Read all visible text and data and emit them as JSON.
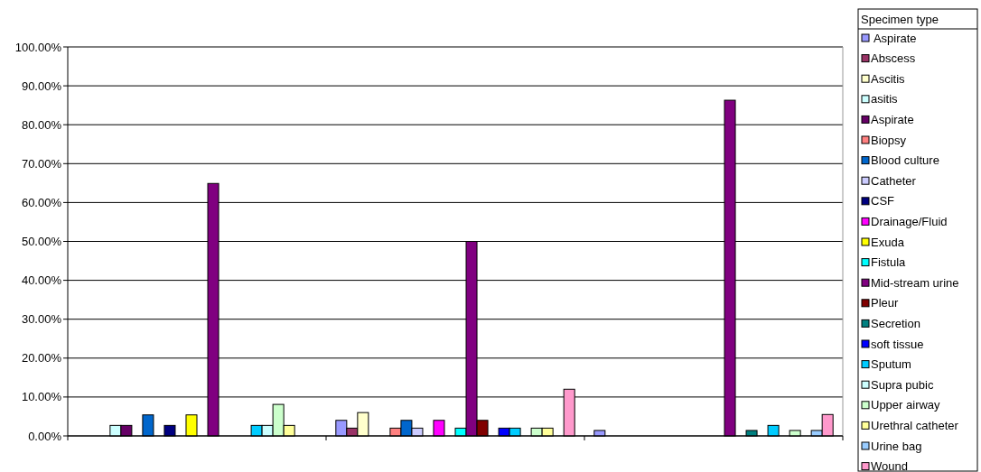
{
  "chart_data": {
    "type": "bar",
    "categories": [
      null,
      null,
      null
    ],
    "legend_title": "Specimen type",
    "legend": "right",
    "grid": "y",
    "ylim": [
      0,
      100
    ],
    "yticks": [
      {
        "value": 0,
        "label": "0.00%"
      },
      {
        "value": 10,
        "label": "10.00%"
      },
      {
        "value": 20,
        "label": "20.00%"
      },
      {
        "value": 30,
        "label": "30.00%"
      },
      {
        "value": 40,
        "label": "40.00%"
      },
      {
        "value": 50,
        "label": "50.00%"
      },
      {
        "value": 60,
        "label": "60.00%"
      },
      {
        "value": 70,
        "label": "70.00%"
      },
      {
        "value": 80,
        "label": "80.00%"
      },
      {
        "value": 90,
        "label": "90.00%"
      },
      {
        "value": 100,
        "label": "100.00%"
      }
    ],
    "series": [
      {
        "name": " Aspirate",
        "color": "#9999ff",
        "values": [
          null,
          4,
          1.4
        ]
      },
      {
        "name": "Abscess",
        "color": "#993366",
        "values": [
          null,
          2,
          null
        ]
      },
      {
        "name": "Ascitis",
        "color": "#ffffcc",
        "values": [
          null,
          6,
          null
        ]
      },
      {
        "name": "asitis",
        "color": "#ccffff",
        "values": [
          2.7,
          null,
          null
        ]
      },
      {
        "name": "Aspirate",
        "color": "#660066",
        "values": [
          2.7,
          null,
          null
        ]
      },
      {
        "name": "Biopsy",
        "color": "#ff8080",
        "values": [
          null,
          2,
          null
        ]
      },
      {
        "name": "Blood culture",
        "color": "#0066cc",
        "values": [
          5.4,
          4,
          null
        ]
      },
      {
        "name": "Catheter",
        "color": "#ccccff",
        "values": [
          null,
          2,
          null
        ]
      },
      {
        "name": "CSF",
        "color": "#000080",
        "values": [
          2.7,
          null,
          null
        ]
      },
      {
        "name": "Drainage/Fluid",
        "color": "#ff00ff",
        "values": [
          null,
          4,
          null
        ]
      },
      {
        "name": "Exuda",
        "color": "#ffff00",
        "values": [
          5.4,
          null,
          null
        ]
      },
      {
        "name": "Fistula",
        "color": "#00ffff",
        "values": [
          null,
          2,
          null
        ]
      },
      {
        "name": "Mid-stream urine",
        "color": "#800080",
        "values": [
          64.9,
          50,
          86.3
        ]
      },
      {
        "name": "Pleur",
        "color": "#800000",
        "values": [
          null,
          4,
          null
        ]
      },
      {
        "name": "Secretion",
        "color": "#008080",
        "values": [
          null,
          null,
          1.4
        ]
      },
      {
        "name": "soft tissue",
        "color": "#0000ff",
        "values": [
          null,
          2,
          null
        ]
      },
      {
        "name": "Sputum",
        "color": "#00ccff",
        "values": [
          2.7,
          2,
          2.7
        ]
      },
      {
        "name": "Supra pubic",
        "color": "#ccffff",
        "values": [
          2.7,
          null,
          null
        ]
      },
      {
        "name": "Upper airway",
        "color": "#ccffcc",
        "values": [
          8.1,
          2,
          1.4
        ]
      },
      {
        "name": "Urethral catheter",
        "color": "#ffff99",
        "values": [
          2.7,
          2,
          null
        ]
      },
      {
        "name": "Urine bag",
        "color": "#99ccff",
        "values": [
          null,
          null,
          1.4
        ]
      },
      {
        "name": "Wound",
        "color": "#ff99cc",
        "values": [
          null,
          12,
          5.5
        ]
      }
    ]
  }
}
